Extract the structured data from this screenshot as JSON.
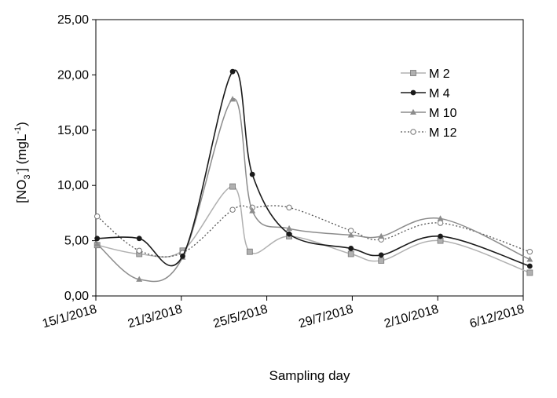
{
  "chart_data": {
    "type": "line",
    "title": "",
    "xlabel": "Sampling day",
    "ylabel": {
      "pre": "[NO",
      "sub": "3",
      "sup": "-",
      "mid": "] (mgL",
      "sup2": "-1",
      "post": ")"
    },
    "x_ticks": [
      "15/1/2018",
      "21/3/2018",
      "25/5/2018",
      "29/7/2018",
      "2/10/2018",
      "6/12/2018"
    ],
    "x_range": [
      "2018-01-15",
      "2018-12-06"
    ],
    "y_ticks": [
      "0,00",
      "5,00",
      "10,00",
      "15,00",
      "20,00",
      "25,00"
    ],
    "ylim": [
      0,
      25
    ],
    "grid": false,
    "legend_position": "top-right",
    "series": [
      {
        "name": "M 2",
        "color": "#b0b0b0",
        "marker": "square",
        "dash": "solid",
        "points": [
          [
            "2018-01-16",
            4.6
          ],
          [
            "2018-02-17",
            3.8
          ],
          [
            "2018-03-22",
            4.1
          ],
          [
            "2018-04-29",
            9.9
          ],
          [
            "2018-05-12",
            4.0
          ],
          [
            "2018-06-11",
            5.4
          ],
          [
            "2018-07-28",
            3.8
          ],
          [
            "2018-08-20",
            3.2
          ],
          [
            "2018-10-04",
            5.0
          ],
          [
            "2018-12-11",
            2.1
          ]
        ]
      },
      {
        "name": "M 4",
        "color": "#1a1a1a",
        "marker": "circle",
        "dash": "solid",
        "points": [
          [
            "2018-01-16",
            5.2
          ],
          [
            "2018-02-17",
            5.2
          ],
          [
            "2018-03-22",
            3.6
          ],
          [
            "2018-04-29",
            20.3
          ],
          [
            "2018-05-14",
            11.0
          ],
          [
            "2018-06-11",
            5.6
          ],
          [
            "2018-07-28",
            4.3
          ],
          [
            "2018-08-20",
            3.7
          ],
          [
            "2018-10-04",
            5.4
          ],
          [
            "2018-12-11",
            2.7
          ]
        ]
      },
      {
        "name": "M 10",
        "color": "#8c8c8c",
        "marker": "triangle",
        "dash": "solid",
        "points": [
          [
            "2018-01-16",
            4.7
          ],
          [
            "2018-02-17",
            1.5
          ],
          [
            "2018-03-22",
            3.5
          ],
          [
            "2018-04-29",
            17.8
          ],
          [
            "2018-05-14",
            7.7
          ],
          [
            "2018-06-11",
            6.1
          ],
          [
            "2018-07-28",
            5.5
          ],
          [
            "2018-08-20",
            5.4
          ],
          [
            "2018-10-04",
            7.0
          ],
          [
            "2018-12-11",
            3.3
          ]
        ]
      },
      {
        "name": "M 12",
        "color": "#555555",
        "marker": "open-circle",
        "dash": "dotted",
        "points": [
          [
            "2018-01-16",
            7.2
          ],
          [
            "2018-02-17",
            4.1
          ],
          [
            "2018-03-22",
            3.9
          ],
          [
            "2018-04-29",
            7.8
          ],
          [
            "2018-05-14",
            8.0
          ],
          [
            "2018-06-11",
            8.0
          ],
          [
            "2018-07-28",
            5.9
          ],
          [
            "2018-08-20",
            5.1
          ],
          [
            "2018-10-04",
            6.6
          ],
          [
            "2018-12-11",
            4.0
          ]
        ]
      }
    ]
  }
}
